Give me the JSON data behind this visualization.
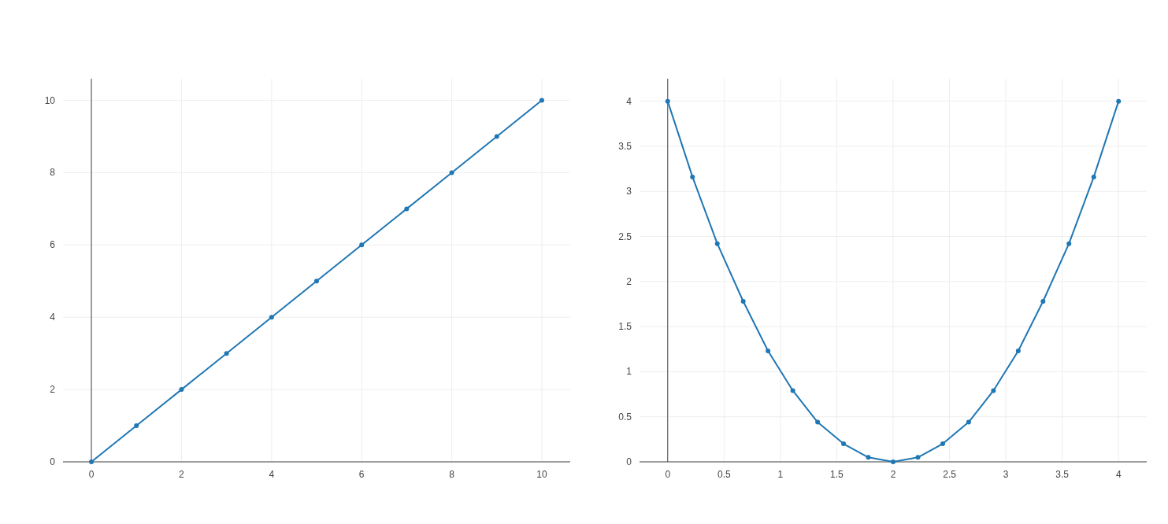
{
  "chart_data": [
    {
      "type": "line",
      "x": [
        0,
        1,
        2,
        3,
        4,
        5,
        6,
        7,
        8,
        9,
        10
      ],
      "values": [
        0,
        1,
        2,
        3,
        4,
        5,
        6,
        7,
        8,
        9,
        10
      ],
      "color": "#1f77b4",
      "marker": "circle",
      "xlim": [
        -0.63,
        10.63
      ],
      "ylim": [
        0,
        10.6
      ],
      "xticks": [
        0,
        2,
        4,
        6,
        8,
        10
      ],
      "yticks": [
        0,
        2,
        4,
        6,
        8,
        10
      ],
      "grid": true
    },
    {
      "type": "line",
      "x": [
        0,
        0.22,
        0.44,
        0.67,
        0.89,
        1.11,
        1.33,
        1.56,
        1.78,
        2,
        2.22,
        2.44,
        2.67,
        2.89,
        3.11,
        3.33,
        3.56,
        3.78,
        4
      ],
      "values": [
        4,
        3.16,
        2.42,
        1.78,
        1.23,
        0.79,
        0.44,
        0.2,
        0.05,
        0,
        0.05,
        0.2,
        0.44,
        0.79,
        1.23,
        1.78,
        2.42,
        3.16,
        4
      ],
      "color": "#1f77b4",
      "marker": "circle",
      "xlim": [
        -0.25,
        4.25
      ],
      "ylim": [
        0,
        4.25
      ],
      "xticks": [
        0,
        0.5,
        1,
        1.5,
        2,
        2.5,
        3,
        3.5,
        4
      ],
      "yticks": [
        0,
        0.5,
        1,
        1.5,
        2,
        2.5,
        3,
        3.5,
        4
      ],
      "grid": true
    }
  ]
}
